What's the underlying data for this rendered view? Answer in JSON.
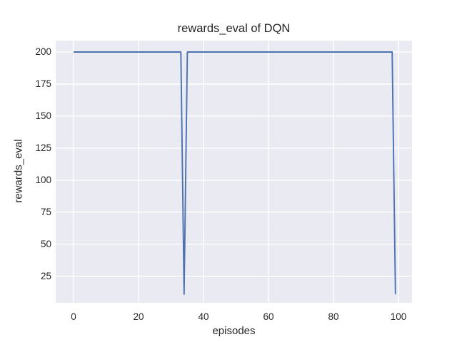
{
  "chart_data": {
    "type": "line",
    "title": "rewards_eval of DQN",
    "xlabel": "episodes",
    "ylabel": "rewards_eval",
    "series_name": "rewards_eval",
    "x_is_index": true,
    "x": [
      0,
      1,
      2,
      3,
      4,
      5,
      6,
      7,
      8,
      9,
      10,
      11,
      12,
      13,
      14,
      15,
      16,
      17,
      18,
      19,
      20,
      21,
      22,
      23,
      24,
      25,
      26,
      27,
      28,
      29,
      30,
      31,
      32,
      33,
      34,
      35,
      36,
      37,
      38,
      39,
      40,
      41,
      42,
      43,
      44,
      45,
      46,
      47,
      48,
      49,
      50,
      51,
      52,
      53,
      54,
      55,
      56,
      57,
      58,
      59,
      60,
      61,
      62,
      63,
      64,
      65,
      66,
      67,
      68,
      69,
      70,
      71,
      72,
      73,
      74,
      75,
      76,
      77,
      78,
      79,
      80,
      81,
      82,
      83,
      84,
      85,
      86,
      87,
      88,
      89,
      90,
      91,
      92,
      93,
      94,
      95,
      96,
      97,
      98,
      99
    ],
    "values": [
      200,
      200,
      200,
      200,
      200,
      200,
      200,
      200,
      200,
      200,
      200,
      200,
      200,
      200,
      200,
      200,
      200,
      200,
      200,
      200,
      200,
      200,
      200,
      200,
      200,
      200,
      200,
      200,
      200,
      200,
      200,
      200,
      200,
      200,
      11,
      200,
      200,
      200,
      200,
      200,
      200,
      200,
      200,
      200,
      200,
      200,
      200,
      200,
      200,
      200,
      200,
      200,
      200,
      200,
      200,
      200,
      200,
      200,
      200,
      200,
      200,
      200,
      200,
      200,
      200,
      200,
      200,
      200,
      200,
      200,
      200,
      200,
      200,
      200,
      200,
      200,
      200,
      200,
      200,
      200,
      200,
      200,
      200,
      200,
      200,
      200,
      200,
      200,
      200,
      200,
      200,
      200,
      200,
      200,
      200,
      200,
      200,
      200,
      200,
      11
    ],
    "xticks": [
      0,
      20,
      40,
      60,
      80,
      100
    ],
    "yticks": [
      25,
      50,
      75,
      100,
      125,
      150,
      175,
      200
    ],
    "xlim": [
      -5.5,
      104.1
    ],
    "ylim": [
      4.3,
      208.9
    ],
    "grid": true,
    "legend": false,
    "style": "seaborn-darkgrid",
    "colors": {
      "line": "#4c72b0",
      "axes_background": "#eaeaf2",
      "grid": "#ffffff",
      "figure_background": "#ffffff",
      "text": "#262626"
    }
  }
}
